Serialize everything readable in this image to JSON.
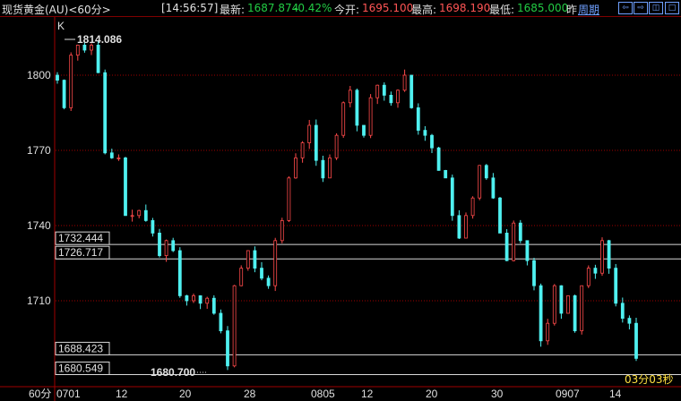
{
  "header": {
    "title": "现货黄金(AU)<60分>",
    "time": "[14:56:57]",
    "latest_label": "最新:",
    "latest": "1687.874",
    "change": "-0.42%",
    "open_label": "今开:",
    "open": "1695.100",
    "high_label": "最高:",
    "high": "1698.190",
    "low_label": "最低:",
    "low": "1685.000",
    "prev_label": "昨",
    "period_link": "周期",
    "buttons": [
      "⇦",
      "⇨",
      "◫",
      "□"
    ]
  },
  "chart_data": {
    "type": "candlestick",
    "period_label": "60分",
    "marker_label": "K",
    "y_ticks": [
      1800,
      1770,
      1740,
      1710
    ],
    "ylim": [
      1680,
      1829
    ],
    "x_tick_labels": [
      "0701",
      "12",
      "20",
      "28",
      "0805",
      "12",
      "20",
      "30",
      "0907",
      "14"
    ],
    "max_annotation": "1814.086",
    "min_annotation": "1680.700",
    "horizontal_lines": [
      {
        "label": "1732.444",
        "value": 1732.444
      },
      {
        "label": "1726.717",
        "value": 1726.717
      },
      {
        "label": "1688.423",
        "value": 1688.423
      },
      {
        "label": "1680.549",
        "value": 1680.549
      }
    ],
    "countdown": "03分03秒",
    "closes": [
      1798,
      1787,
      1808,
      1812,
      1810,
      1812,
      1801,
      1769,
      1767,
      1767,
      1744,
      1744,
      1746,
      1742,
      1737,
      1728,
      1734,
      1730,
      1712,
      1710,
      1712,
      1709,
      1711,
      1705,
      1698,
      1684,
      1716,
      1723,
      1730,
      1723,
      1719,
      1716,
      1734,
      1742,
      1759,
      1767,
      1773,
      1780,
      1766,
      1759,
      1767,
      1776,
      1789,
      1794,
      1780,
      1776,
      1791,
      1796,
      1792,
      1789,
      1794,
      1800,
      1787,
      1778,
      1776,
      1771,
      1762,
      1759,
      1744,
      1735,
      1744,
      1751,
      1764,
      1759,
      1751,
      1737,
      1726,
      1741,
      1734,
      1726,
      1716,
      1694,
      1701,
      1716,
      1705,
      1712,
      1698,
      1716,
      1723,
      1721,
      1734,
      1723,
      1709,
      1703,
      1701,
      1687
    ],
    "colors": {
      "up": "#ff4a4a",
      "down": "#4ff0f0",
      "grid": "#a00000",
      "line": "#d8d8d8"
    }
  }
}
